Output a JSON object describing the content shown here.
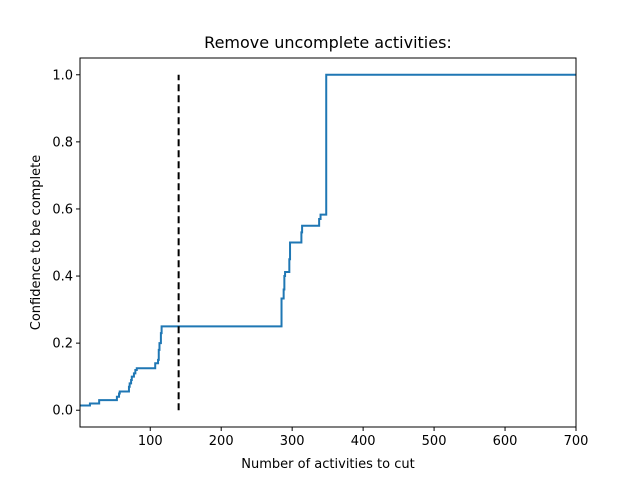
{
  "chart_data": {
    "type": "line",
    "title": "Remove uncomplete activities:",
    "xlabel": "Number of activities to cut",
    "ylabel": "Confidence to be complete",
    "xlim": [
      1,
      700
    ],
    "ylim": [
      -0.05,
      1.05
    ],
    "x_ticks": [
      100,
      200,
      300,
      400,
      500,
      600,
      700
    ],
    "y_ticks": [
      0.0,
      0.2,
      0.4,
      0.6,
      0.8,
      1.0
    ],
    "x_tick_labels": [
      "100",
      "200",
      "300",
      "400",
      "500",
      "600",
      "700"
    ],
    "y_tick_labels": [
      "0.0",
      "0.2",
      "0.4",
      "0.6",
      "0.8",
      "1.0"
    ],
    "grid": false,
    "series": [
      {
        "color": "#1f77b4",
        "style": "step",
        "x": [
          1,
          14,
          15,
          27,
          28,
          50,
          53,
          56,
          57,
          69,
          70,
          71,
          73,
          74,
          76,
          77,
          78,
          79,
          80,
          81,
          82,
          83,
          106,
          107,
          110,
          111,
          112,
          113,
          114,
          115,
          116,
          117,
          118,
          119,
          284,
          285,
          287,
          288,
          289,
          290,
          295,
          296,
          297,
          298,
          299,
          312,
          313,
          314,
          337,
          338,
          339,
          340,
          342,
          343,
          347,
          348,
          700
        ],
        "y": [
          0.014,
          0.014,
          0.02,
          0.02,
          0.03,
          0.03,
          0.04,
          0.05,
          0.056,
          0.056,
          0.07,
          0.08,
          0.09,
          0.1,
          0.1,
          0.11,
          0.11,
          0.12,
          0.12,
          0.125,
          0.125,
          0.125,
          0.125,
          0.14,
          0.14,
          0.15,
          0.18,
          0.2,
          0.2,
          0.23,
          0.25,
          0.25,
          0.25,
          0.25,
          0.25,
          0.333,
          0.333,
          0.36,
          0.4,
          0.412,
          0.412,
          0.45,
          0.5,
          0.5,
          0.5,
          0.5,
          0.53,
          0.55,
          0.55,
          0.57,
          0.57,
          0.583,
          0.583,
          0.583,
          0.583,
          1.0,
          1.0
        ]
      },
      {
        "color": "#000000",
        "style": "dashed",
        "x": [
          140,
          140
        ],
        "y": [
          0.0,
          1.0
        ]
      }
    ]
  }
}
